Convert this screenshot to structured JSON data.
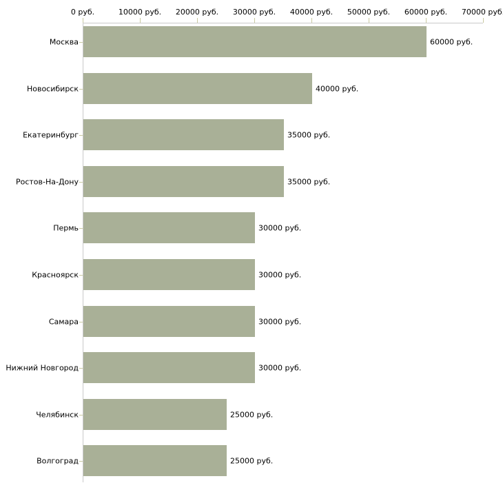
{
  "page": {
    "background": "#ffffff"
  },
  "chart_data": {
    "type": "bar",
    "orientation": "horizontal",
    "title": "",
    "categories": [
      "Москва",
      "Новосибирск",
      "Екатеринбург",
      "Ростов-На-Дону",
      "Пермь",
      "Красноярск",
      "Самара",
      "Нижний Новгород",
      "Челябинск",
      "Волгоград"
    ],
    "values": [
      60000,
      40000,
      35000,
      35000,
      30000,
      30000,
      30000,
      30000,
      25000,
      25000
    ],
    "value_labels": [
      "60000 руб.",
      "40000 руб.",
      "35000 руб.",
      "35000 руб.",
      "30000 руб.",
      "30000 руб.",
      "30000 руб.",
      "30000 руб.",
      "25000 руб.",
      "25000 руб."
    ],
    "xlabel": "",
    "ylabel": "",
    "unit": "руб.",
    "x_axis": {
      "position": "top",
      "min": 0,
      "max": 70000,
      "tick_step": 10000,
      "tick_values": [
        0,
        10000,
        20000,
        30000,
        40000,
        50000,
        60000,
        70000
      ],
      "tick_labels": [
        "0 руб.",
        "10000 руб.",
        "20000 руб.",
        "30000 руб.",
        "40000 руб.",
        "50000 руб.",
        "60000 руб.",
        "70000 руб."
      ]
    },
    "grid": false,
    "legend": false,
    "colors": {
      "bar": "#a9b097",
      "axis_line": "#c9c9c9",
      "tick_mark": "#c9c9a0",
      "text": "#000000"
    }
  }
}
